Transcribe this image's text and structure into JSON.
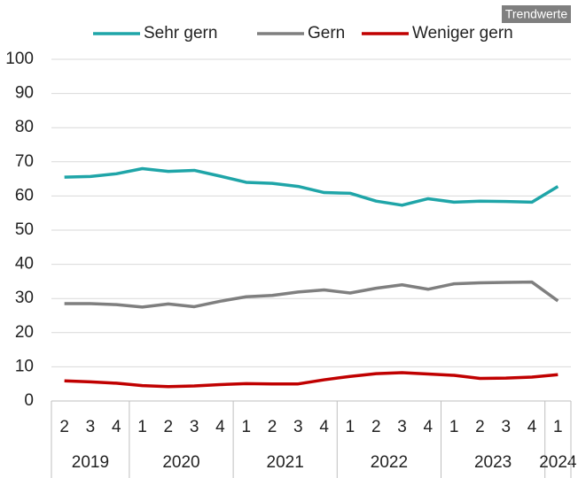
{
  "chart_data": {
    "type": "line",
    "annotation": "Trendwerte",
    "categories": [
      "2",
      "3",
      "4",
      "1",
      "2",
      "3",
      "4",
      "1",
      "2",
      "3",
      "4",
      "1",
      "2",
      "3",
      "4",
      "1",
      "2",
      "3",
      "4",
      "1"
    ],
    "year_groups": [
      {
        "label": "2019",
        "count": 3
      },
      {
        "label": "2020",
        "count": 4
      },
      {
        "label": "2021",
        "count": 4
      },
      {
        "label": "2022",
        "count": 4
      },
      {
        "label": "2023",
        "count": 4
      },
      {
        "label": "2024",
        "count": 1
      }
    ],
    "series": [
      {
        "name": "Sehr gern",
        "color": "#1fa5a8",
        "values": [
          65.5,
          65.7,
          66.5,
          68,
          67.2,
          67.5,
          65.8,
          64,
          63.7,
          62.8,
          61,
          60.8,
          58.5,
          57.3,
          59.2,
          58.2,
          58.5,
          58.4,
          58.2,
          62.8
        ]
      },
      {
        "name": "Gern",
        "color": "#7f7f7f",
        "values": [
          28.5,
          28.5,
          28.2,
          27.5,
          28.4,
          27.6,
          29.2,
          30.5,
          30.9,
          31.9,
          32.5,
          31.6,
          33,
          34,
          32.7,
          34.3,
          34.6,
          34.7,
          34.8,
          29.3
        ]
      },
      {
        "name": "Weniger gern",
        "color": "#c00000",
        "values": [
          5.9,
          5.6,
          5.2,
          4.5,
          4.2,
          4.4,
          4.8,
          5.1,
          5,
          5,
          6.2,
          7.2,
          8,
          8.3,
          7.9,
          7.5,
          6.6,
          6.7,
          7,
          7.7
        ]
      }
    ],
    "ylim": [
      0,
      100
    ],
    "yticks": [
      0,
      10,
      20,
      30,
      40,
      50,
      60,
      70,
      80,
      90,
      100
    ],
    "grid": true
  }
}
